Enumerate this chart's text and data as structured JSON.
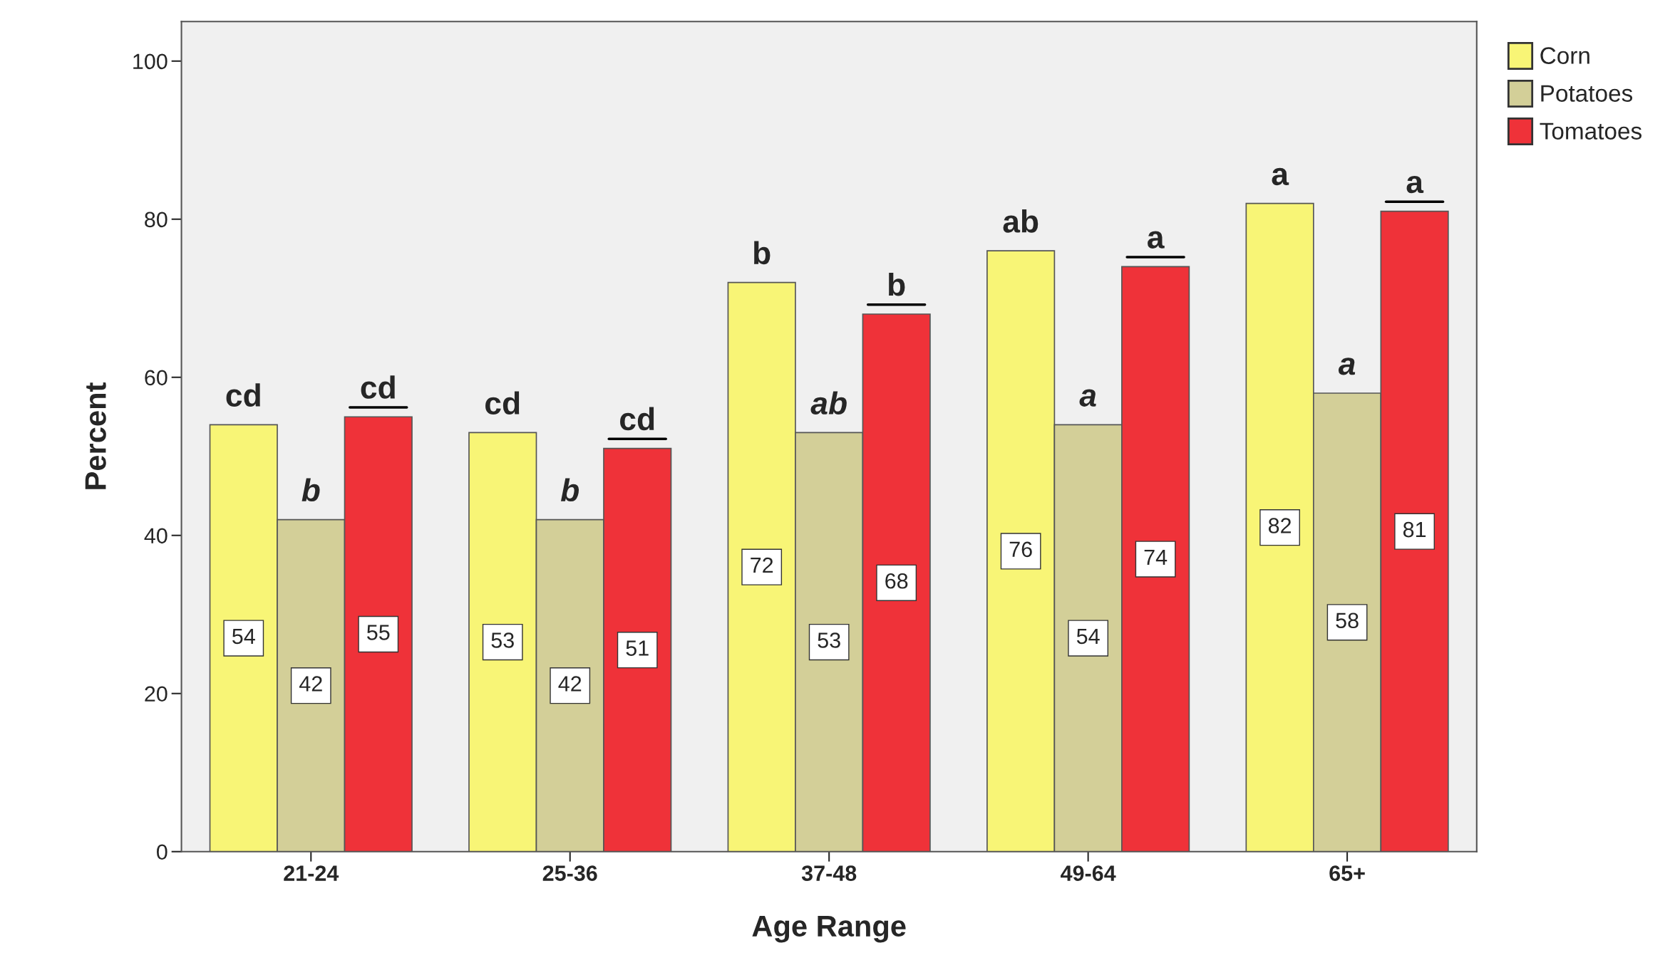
{
  "chart_data": {
    "type": "bar",
    "xlabel": "Age Range",
    "ylabel": "Percent",
    "categories": [
      "21-24",
      "25-36",
      "37-48",
      "49-64",
      "65+"
    ],
    "series": [
      {
        "name": "Corn",
        "color": "#f8f576",
        "values": [
          54,
          53,
          72,
          76,
          82
        ]
      },
      {
        "name": "Potatoes",
        "color": "#d3cf98",
        "values": [
          42,
          42,
          53,
          54,
          58
        ]
      },
      {
        "name": "Tomatoes",
        "color": "#ef3239",
        "values": [
          55,
          51,
          68,
          74,
          81
        ]
      }
    ],
    "ylim": [
      0,
      105
    ],
    "yticks": [
      0,
      20,
      40,
      60,
      80,
      100
    ],
    "data_labels": true,
    "legend": "top right",
    "grid": false,
    "annotations": [
      "cd",
      "b",
      "cd",
      "cd",
      "b",
      "cd",
      "b",
      "ab",
      "b",
      "ab",
      "a",
      "a",
      "a",
      "a",
      "a"
    ]
  }
}
